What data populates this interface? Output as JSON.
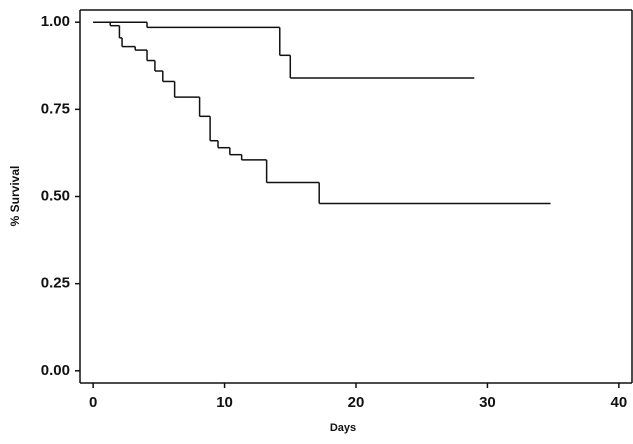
{
  "chart_data": {
    "type": "line",
    "step": true,
    "x_label": "Days",
    "y_label": "% Survival",
    "xlim": [
      -1,
      41
    ],
    "ylim": [
      -0.035,
      1.035
    ],
    "xticks": [
      0,
      10,
      20,
      30,
      40
    ],
    "yticks": [
      {
        "value": 1,
        "label": "1.00"
      },
      {
        "value": 0.75,
        "label": "0.75"
      },
      {
        "value": 0.5,
        "label": "0.50"
      },
      {
        "value": 0.25,
        "label": "0.25"
      },
      {
        "value": 0,
        "label": "0.00"
      }
    ],
    "series": [
      {
        "color": "#111111",
        "x": [
          0,
          4.1,
          14.2,
          15,
          29
        ],
        "values": [
          1.0,
          0.985,
          0.905,
          0.84,
          0.84
        ]
      },
      {
        "color": "#111111",
        "x": [
          0,
          1.3,
          2.0,
          2.2,
          3.2,
          4.1,
          4.7,
          5.3,
          6.2,
          8.1,
          8.9,
          9.5,
          10.4,
          11.3,
          13.2,
          17.2,
          34.8
        ],
        "values": [
          1.0,
          0.99,
          0.955,
          0.93,
          0.92,
          0.89,
          0.86,
          0.83,
          0.785,
          0.73,
          0.66,
          0.64,
          0.62,
          0.605,
          0.54,
          0.48,
          0.48
        ]
      }
    ]
  }
}
